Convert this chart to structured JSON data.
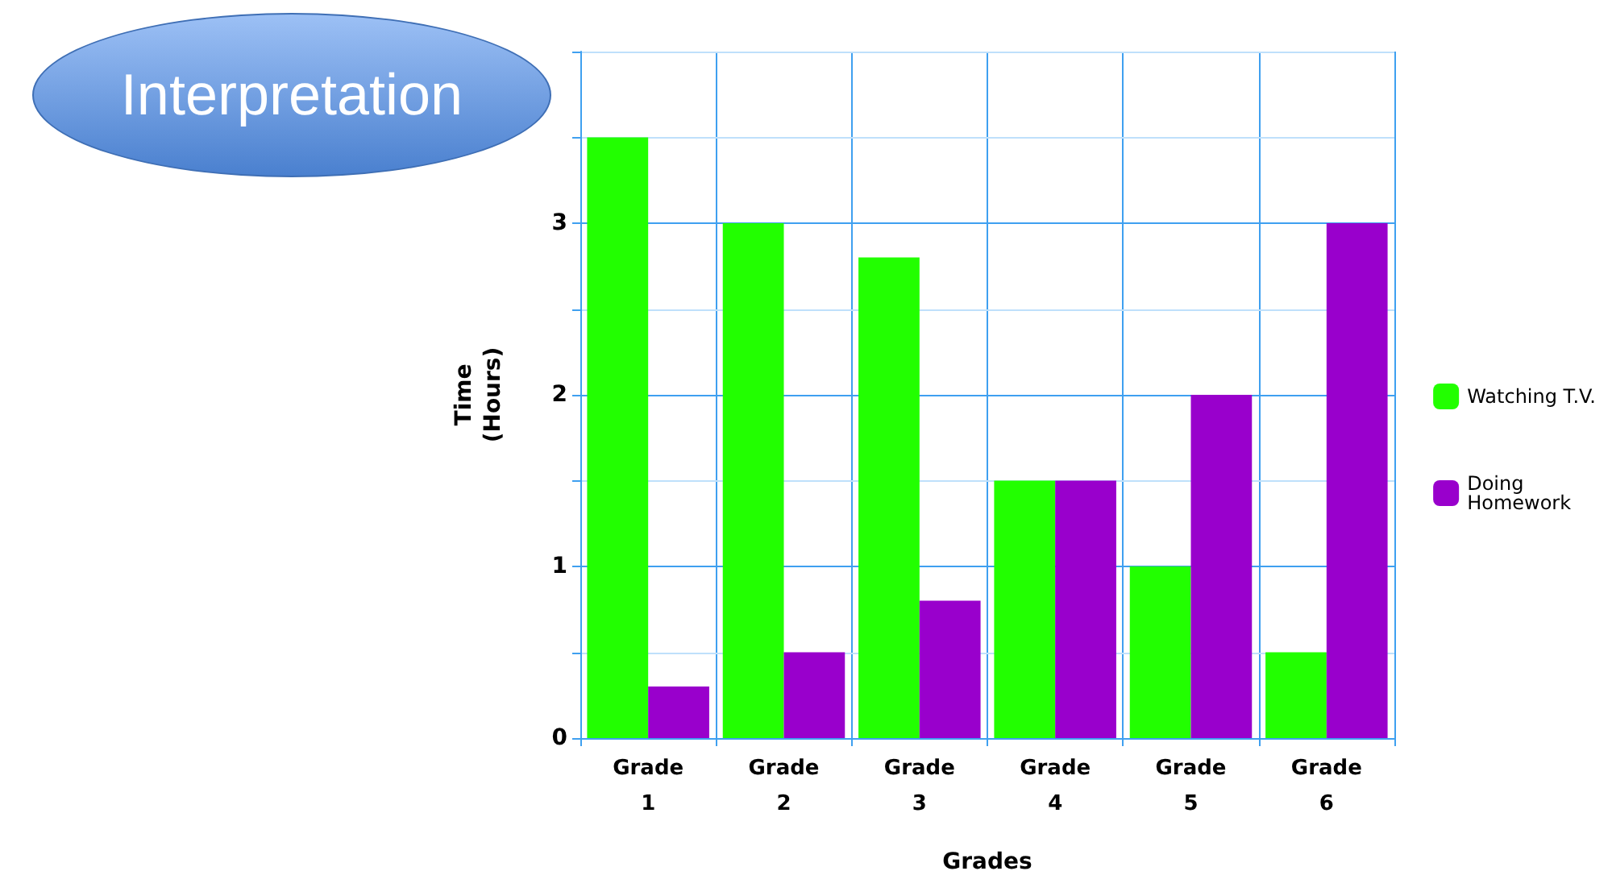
{
  "chart_data": {
    "type": "bar",
    "title": "Interpretation",
    "xlabel": "Grades",
    "ylabel": "Time\n(Hours)",
    "categories": [
      "Grade 1",
      "Grade 2",
      "Grade 3",
      "Grade 4",
      "Grade 5",
      "Grade 6"
    ],
    "series": [
      {
        "name": "Watching T.V.",
        "color": "#22ff00",
        "values": [
          3.5,
          3,
          2.8,
          1.5,
          1,
          0.5
        ]
      },
      {
        "name": "Doing Homework",
        "color": "#9900cc",
        "values": [
          0.3,
          0.5,
          0.8,
          1.5,
          2,
          3
        ]
      }
    ],
    "ylim": [
      0,
      4
    ],
    "yticks": [
      0,
      {
        "value": 0.5,
        "label": null
      },
      1,
      {
        "value": 1.5,
        "label": null
      },
      2,
      {
        "value": 2.5,
        "label": null
      },
      3,
      {
        "value": 3.5,
        "label": null
      },
      {
        "value": 4,
        "label": null
      }
    ],
    "grid": true,
    "legend": "right"
  }
}
